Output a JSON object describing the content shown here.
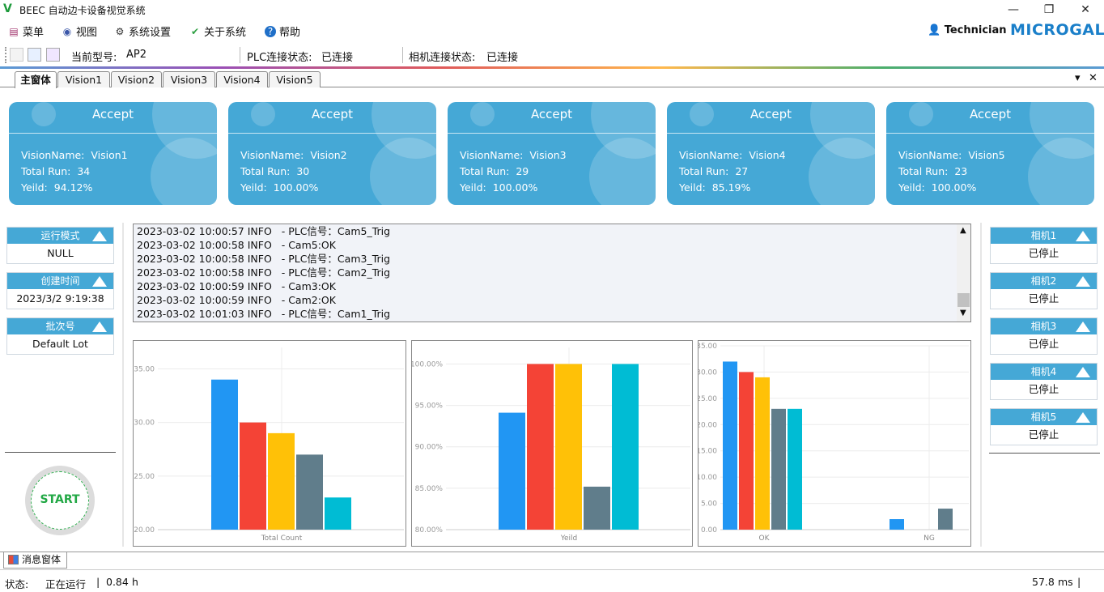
{
  "window": {
    "logo": "V",
    "title": "BEEC 自动边卡设备视觉系统",
    "minimize_icon": "—",
    "restore_icon": "❐",
    "close_icon": "✕"
  },
  "menu": {
    "items": [
      {
        "label": "菜单",
        "icon": "menu-icon"
      },
      {
        "label": "视图",
        "icon": "eye-icon"
      },
      {
        "label": "系统设置",
        "icon": "gear-icon"
      },
      {
        "label": "关于系统",
        "icon": "leaf-icon"
      },
      {
        "label": "帮助",
        "icon": "help-icon"
      }
    ],
    "user": "Technician",
    "brand": "MICROGAL"
  },
  "toolbar": {
    "model_label": "当前型号:",
    "model_value": "AP2",
    "plc_label": "PLC连接状态:",
    "plc_value": "已连接",
    "camera_label": "相机连接状态:",
    "camera_value": "已连接"
  },
  "tabs": [
    "主窗体",
    "Vision1",
    "Vision2",
    "Vision3",
    "Vision4",
    "Vision5"
  ],
  "tab_controls": {
    "dropdown": "▾",
    "close": "✕"
  },
  "cards": [
    {
      "status": "Accept",
      "name_label": "VisionName:",
      "name": "Vision1",
      "run_label": "Total Run:",
      "run": "34",
      "yield_label": "Yeild:",
      "yield": "94.12%"
    },
    {
      "status": "Accept",
      "name_label": "VisionName:",
      "name": "Vision2",
      "run_label": "Total Run:",
      "run": "30",
      "yield_label": "Yeild:",
      "yield": "100.00%"
    },
    {
      "status": "Accept",
      "name_label": "VisionName:",
      "name": "Vision3",
      "run_label": "Total Run:",
      "run": "29",
      "yield_label": "Yeild:",
      "yield": "100.00%"
    },
    {
      "status": "Accept",
      "name_label": "VisionName:",
      "name": "Vision4",
      "run_label": "Total Run:",
      "run": "27",
      "yield_label": "Yeild:",
      "yield": "85.19%"
    },
    {
      "status": "Accept",
      "name_label": "VisionName:",
      "name": "Vision5",
      "run_label": "Total Run:",
      "run": "23",
      "yield_label": "Yeild:",
      "yield": "100.00%"
    }
  ],
  "left_panels": [
    {
      "title": "运行模式",
      "value": "NULL"
    },
    {
      "title": "创建时间",
      "value": "2023/3/2 9:19:38"
    },
    {
      "title": "批次号",
      "value": "Default Lot"
    }
  ],
  "start_button": "START",
  "right_panels": [
    {
      "title": "相机1",
      "value": "已停止"
    },
    {
      "title": "相机2",
      "value": "已停止"
    },
    {
      "title": "相机3",
      "value": "已停止"
    },
    {
      "title": "相机4",
      "value": "已停止"
    },
    {
      "title": "相机5",
      "value": "已停止"
    }
  ],
  "log": [
    "2023-03-02 10:00:57 INFO   - PLC信号：Cam5_Trig",
    "2023-03-02 10:00:58 INFO   - Cam5:OK",
    "2023-03-02 10:00:58 INFO   - PLC信号：Cam3_Trig",
    "2023-03-02 10:00:58 INFO   - PLC信号：Cam2_Trig",
    "2023-03-02 10:00:59 INFO   - Cam3:OK",
    "2023-03-02 10:00:59 INFO   - Cam2:OK",
    "2023-03-02 10:01:03 INFO   - PLC信号：Cam1_Trig"
  ],
  "colors": [
    "#2196f3",
    "#f44336",
    "#ffc107",
    "#607d8b",
    "#00bcd4"
  ],
  "chart_data": [
    {
      "type": "bar",
      "categories": [
        "Total Count"
      ],
      "series": [
        {
          "values": [
            34
          ]
        },
        {
          "values": [
            30
          ]
        },
        {
          "values": [
            29
          ]
        },
        {
          "values": [
            27
          ]
        },
        {
          "values": [
            23
          ]
        }
      ],
      "ylim": [
        20,
        37
      ],
      "yticks": [
        "20.00",
        "25.00",
        "30.00",
        "35.00"
      ],
      "ytick_values": [
        20,
        25,
        30,
        35
      ]
    },
    {
      "type": "bar",
      "categories": [
        "Yeild"
      ],
      "series": [
        {
          "values": [
            94.12
          ]
        },
        {
          "values": [
            100
          ]
        },
        {
          "values": [
            100
          ]
        },
        {
          "values": [
            85.19
          ]
        },
        {
          "values": [
            100
          ]
        }
      ],
      "ylim": [
        80,
        102
      ],
      "yticks": [
        "80.00%",
        "85.00%",
        "90.00%",
        "95.00%",
        "100.00%"
      ],
      "ytick_values": [
        80,
        85,
        90,
        95,
        100
      ]
    },
    {
      "type": "bar",
      "categories": [
        "OK",
        "NG"
      ],
      "series": [
        {
          "values": [
            32,
            2
          ]
        },
        {
          "values": [
            30,
            0
          ]
        },
        {
          "values": [
            29,
            0
          ]
        },
        {
          "values": [
            23,
            4
          ]
        },
        {
          "values": [
            23,
            0
          ]
        }
      ],
      "ylim": [
        0,
        35
      ],
      "yticks": [
        "0.00",
        "5.00",
        "10.00",
        "15.00",
        "20.00",
        "25.00",
        "30.00",
        "35.00"
      ],
      "ytick_values": [
        0,
        5,
        10,
        15,
        20,
        25,
        30,
        35
      ]
    }
  ],
  "msg_tab": "消息窗体",
  "status": {
    "label": "状态:",
    "value": "正在运行",
    "divider": "|",
    "hours": "0.84",
    "hours_unit": "h",
    "ms": "57.8",
    "ms_unit": "ms",
    "ms_divider": "|"
  }
}
